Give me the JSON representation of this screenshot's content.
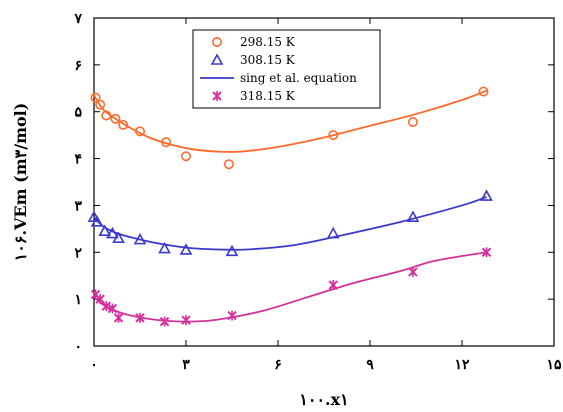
{
  "chart_data": {
    "type": "scatter",
    "xlabel": "۱۰۰.x۱",
    "ylabel": "۱۰۶.VEm (m۳/mol)",
    "xlim": [
      0,
      15
    ],
    "ylim": [
      0,
      7
    ],
    "xticks": [
      0,
      3,
      6,
      9,
      12,
      15
    ],
    "yticks": [
      0,
      1,
      2,
      3,
      4,
      5,
      6,
      7
    ],
    "xtick_labels": [
      "۰",
      "۳",
      "۶",
      "۹",
      "۱۲",
      "۱۵"
    ],
    "ytick_labels": [
      "۰",
      "۱",
      "۲",
      "۳",
      "۴",
      "۵",
      "۶",
      "۷"
    ],
    "grid": false,
    "legend_position": "top",
    "series": [
      {
        "name": "298.15 K",
        "color": "#ff6a2a",
        "marker": "circle",
        "x": [
          0.05,
          0.2,
          0.4,
          0.7,
          0.95,
          1.5,
          2.35,
          3.0,
          4.4,
          7.8,
          10.4,
          12.7
        ],
        "y": [
          5.3,
          5.15,
          4.92,
          4.85,
          4.72,
          4.58,
          4.35,
          4.05,
          3.88,
          4.5,
          4.78,
          5.43
        ]
      },
      {
        "name": "308.15 K",
        "color": "#3a3acd",
        "marker": "triangle",
        "x": [
          0.0,
          0.1,
          0.35,
          0.6,
          0.8,
          1.5,
          2.3,
          3.0,
          4.5,
          7.8,
          10.4,
          12.8
        ],
        "y": [
          2.75,
          2.65,
          2.45,
          2.4,
          2.3,
          2.27,
          2.08,
          2.05,
          2.02,
          2.4,
          2.75,
          3.2
        ]
      },
      {
        "name": "318.15 K",
        "color": "#d6309c",
        "marker": "star",
        "x": [
          0.05,
          0.2,
          0.4,
          0.6,
          0.8,
          1.5,
          2.3,
          3.0,
          4.5,
          7.8,
          10.4,
          12.8
        ],
        "y": [
          1.1,
          1.0,
          0.85,
          0.8,
          0.6,
          0.6,
          0.52,
          0.55,
          0.65,
          1.3,
          1.58,
          2.0
        ]
      }
    ],
    "fit_curves": {
      "name": "sing et al. equation",
      "curves": [
        {
          "color": "#ff6a2a",
          "x": [
            0,
            0.3,
            0.7,
            1.2,
            1.8,
            2.5,
            3.2,
            4.0,
            4.8,
            6.0,
            7.5,
            9.0,
            10.5,
            12.0,
            12.8
          ],
          "y": [
            5.35,
            5.05,
            4.85,
            4.65,
            4.45,
            4.3,
            4.2,
            4.15,
            4.15,
            4.25,
            4.45,
            4.7,
            4.95,
            5.25,
            5.45
          ]
        },
        {
          "color": "#3a3acd",
          "x": [
            0,
            0.3,
            0.7,
            1.2,
            2.0,
            3.0,
            4.0,
            5.0,
            6.5,
            8.0,
            10.0,
            12.0,
            12.8
          ],
          "y": [
            2.75,
            2.55,
            2.42,
            2.32,
            2.2,
            2.1,
            2.06,
            2.06,
            2.15,
            2.35,
            2.65,
            3.0,
            3.18
          ]
        },
        {
          "color": "#d6309c",
          "x": [
            0,
            0.3,
            0.7,
            1.2,
            2.0,
            3.0,
            4.0,
            5.5,
            7.0,
            8.5,
            10.0,
            11.0,
            12.0,
            12.8
          ],
          "y": [
            1.05,
            0.88,
            0.75,
            0.65,
            0.56,
            0.52,
            0.56,
            0.75,
            1.05,
            1.35,
            1.6,
            1.8,
            1.92,
            2.0
          ]
        }
      ]
    },
    "legend": [
      {
        "label": "298.15 K",
        "kind": "circle",
        "color": "#ff6a2a"
      },
      {
        "label": "308.15 K",
        "kind": "triangle",
        "color": "#3a3acd"
      },
      {
        "label": "sing et al. equation",
        "kind": "line",
        "color": "#3a3acd"
      },
      {
        "label": "318.15 K",
        "kind": "star",
        "color": "#d6309c"
      }
    ]
  }
}
